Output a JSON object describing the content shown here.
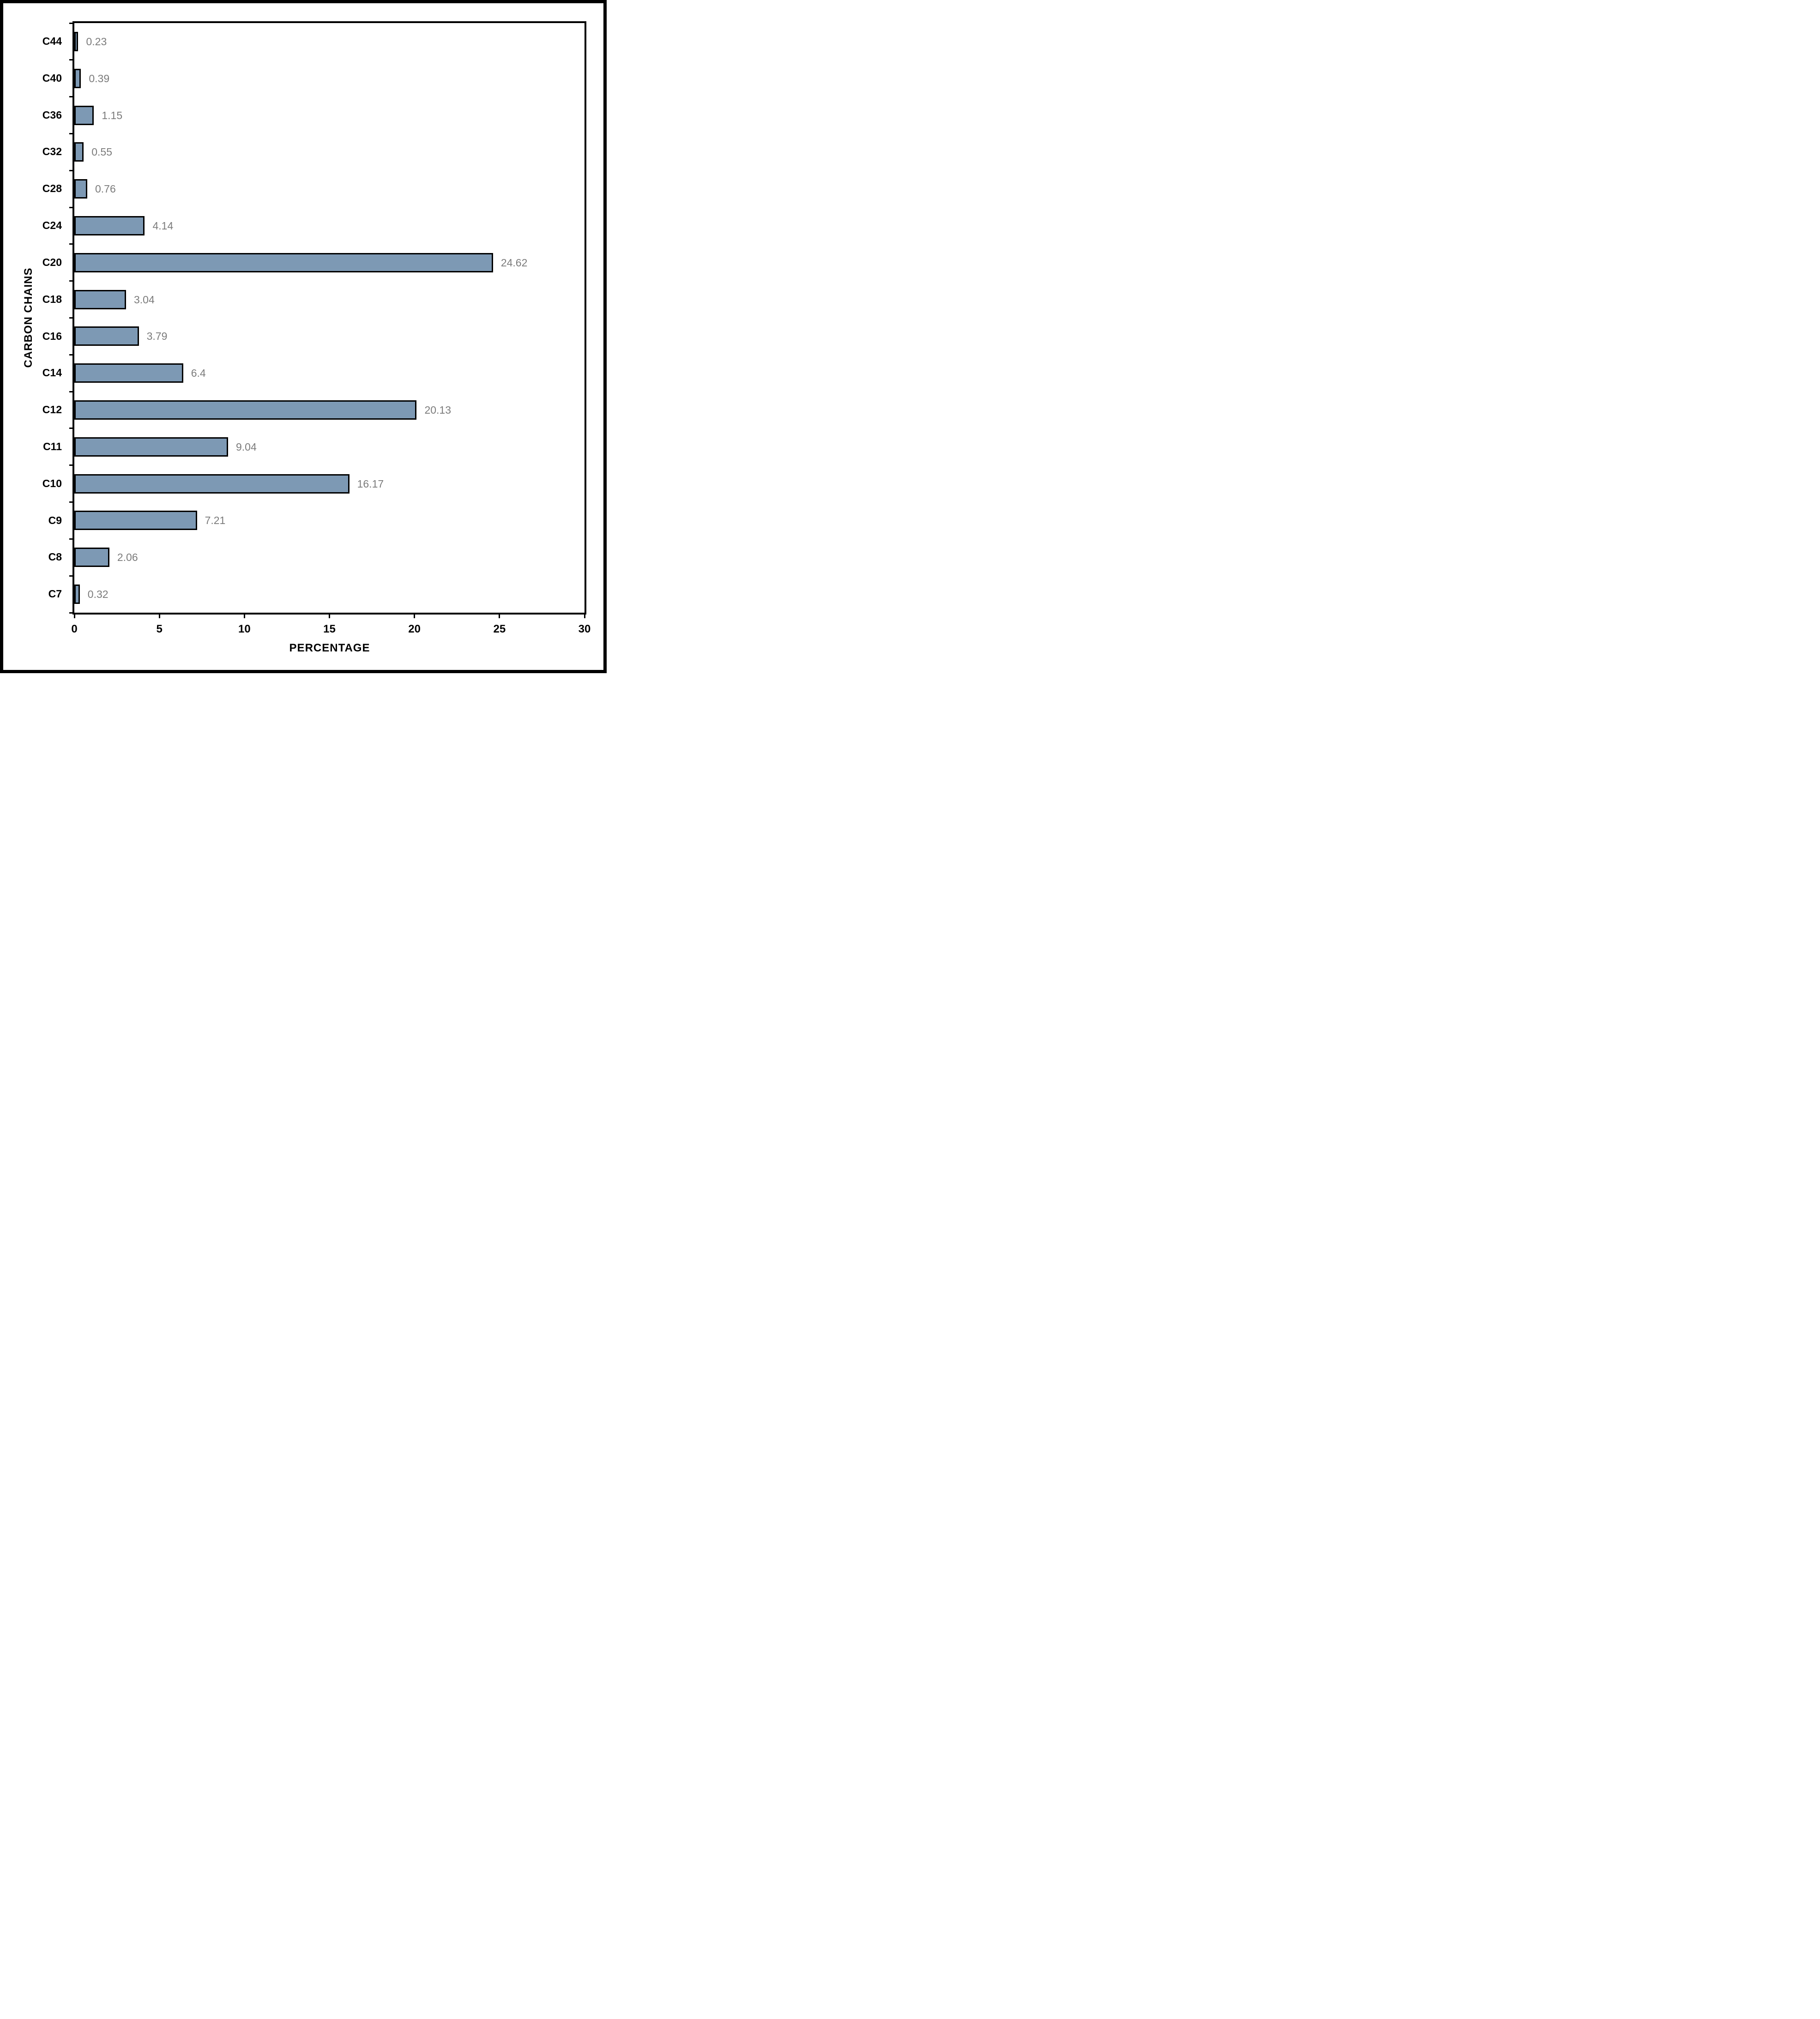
{
  "figure": {
    "background_color": "#ffffff",
    "frame_color": "#000000"
  },
  "chart_data": {
    "type": "bar",
    "orientation": "horizontal",
    "title": "",
    "xlabel": "PERCENTAGE",
    "ylabel": "CARBON CHAINS",
    "categories": [
      "C44",
      "C40",
      "C36",
      "C32",
      "C28",
      "C24",
      "C20",
      "C18",
      "C16",
      "C14",
      "C12",
      "C11",
      "C10",
      "C9",
      "C8",
      "C7"
    ],
    "values": [
      0.23,
      0.39,
      1.15,
      0.55,
      0.76,
      4.14,
      24.62,
      3.04,
      3.79,
      6.4,
      20.13,
      9.04,
      16.17,
      7.21,
      2.06,
      0.32
    ],
    "value_labels": [
      "0.23",
      "0.39",
      "1.15",
      "0.55",
      "0.76",
      "4.14",
      "24.62",
      "3.04",
      "3.79",
      "6.4",
      "20.13",
      "9.04",
      "16.17",
      "7.21",
      "2.06",
      "0.32"
    ],
    "xlim": [
      0,
      30
    ],
    "x_ticks": [
      0,
      5,
      10,
      15,
      20,
      25,
      30
    ],
    "grid": false,
    "legend": null,
    "bar_color": "#7D99B4",
    "bar_border_color": "#000000",
    "value_label_color": "#7B7B7B",
    "axis_color": "#000000"
  }
}
